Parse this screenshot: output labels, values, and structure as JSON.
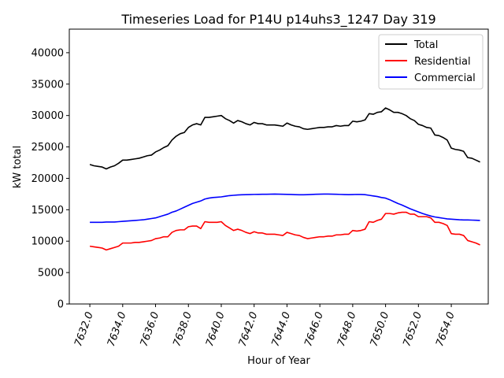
{
  "chart_data": {
    "type": "line",
    "title": "Timeseries Load for P14U p14uhs3_1247  Day 319",
    "xlabel": "Hour of Year",
    "ylabel": "kW total",
    "xlim": [
      7630.75,
      7656.25
    ],
    "ylim": [
      0,
      43750
    ],
    "xticks": [
      7632,
      7634,
      7636,
      7638,
      7640,
      7642,
      7644,
      7646,
      7648,
      7650,
      7652,
      7654
    ],
    "xtick_labels": [
      "7632.0",
      "7634.0",
      "7636.0",
      "7638.0",
      "7640.0",
      "7642.0",
      "7644.0",
      "7646.0",
      "7648.0",
      "7650.0",
      "7652.0",
      "7654.0"
    ],
    "yticks": [
      0,
      5000,
      10000,
      15000,
      20000,
      25000,
      30000,
      35000,
      40000
    ],
    "ytick_labels": [
      "0",
      "5000",
      "10000",
      "15000",
      "20000",
      "25000",
      "30000",
      "35000",
      "40000"
    ],
    "grid": false,
    "legend_position": "top-right",
    "x": [
      7632.0,
      7632.25,
      7632.5,
      7632.75,
      7633.0,
      7633.25,
      7633.5,
      7633.75,
      7634.0,
      7634.25,
      7634.5,
      7634.75,
      7635.0,
      7635.25,
      7635.5,
      7635.75,
      7636.0,
      7636.25,
      7636.5,
      7636.75,
      7637.0,
      7637.25,
      7637.5,
      7637.75,
      7638.0,
      7638.25,
      7638.5,
      7638.75,
      7639.0,
      7639.25,
      7639.5,
      7639.75,
      7640.0,
      7640.25,
      7640.5,
      7640.75,
      7641.0,
      7641.25,
      7641.5,
      7641.75,
      7642.0,
      7642.25,
      7642.5,
      7642.75,
      7643.0,
      7643.25,
      7643.5,
      7643.75,
      7644.0,
      7644.25,
      7644.5,
      7644.75,
      7645.0,
      7645.25,
      7645.5,
      7645.75,
      7646.0,
      7646.25,
      7646.5,
      7646.75,
      7647.0,
      7647.25,
      7647.5,
      7647.75,
      7648.0,
      7648.25,
      7648.5,
      7648.75,
      7649.0,
      7649.25,
      7649.5,
      7649.75,
      7650.0,
      7650.25,
      7650.5,
      7650.75,
      7651.0,
      7651.25,
      7651.5,
      7651.75,
      7652.0,
      7652.25,
      7652.5,
      7652.75,
      7653.0,
      7653.25,
      7653.5,
      7653.75,
      7654.0,
      7654.25,
      7654.5,
      7654.75,
      7655.0,
      7655.25,
      7655.5,
      7655.75
    ],
    "series": [
      {
        "name": "Total",
        "color": "#000000",
        "values": [
          22200,
          22000,
          21900,
          21800,
          21500,
          21800,
          22000,
          22400,
          22900,
          22900,
          23000,
          23100,
          23200,
          23400,
          23600,
          23700,
          24200,
          24500,
          24900,
          25200,
          26100,
          26700,
          27100,
          27300,
          28100,
          28500,
          28700,
          28500,
          29700,
          29700,
          29800,
          29900,
          30000,
          29500,
          29200,
          28800,
          29200,
          29000,
          28700,
          28500,
          28900,
          28700,
          28700,
          28500,
          28500,
          28500,
          28400,
          28300,
          28800,
          28500,
          28300,
          28200,
          27900,
          27800,
          27900,
          28000,
          28100,
          28100,
          28200,
          28200,
          28400,
          28300,
          28400,
          28400,
          29100,
          29000,
          29100,
          29300,
          30300,
          30200,
          30500,
          30600,
          31200,
          30900,
          30500,
          30500,
          30300,
          30000,
          29500,
          29200,
          28600,
          28400,
          28100,
          28000,
          26900,
          26800,
          26500,
          26100,
          24800,
          24600,
          24500,
          24300,
          23300,
          23200,
          22900,
          22600
        ]
      },
      {
        "name": "Residential",
        "color": "#ff0000",
        "values": [
          9200,
          9100,
          9000,
          8900,
          8600,
          8800,
          9000,
          9200,
          9700,
          9700,
          9700,
          9800,
          9800,
          9900,
          10000,
          10100,
          10400,
          10500,
          10700,
          10700,
          11400,
          11700,
          11800,
          11800,
          12300,
          12400,
          12400,
          12000,
          13100,
          13000,
          13000,
          13000,
          13100,
          12500,
          12100,
          11700,
          11900,
          11700,
          11400,
          11200,
          11500,
          11300,
          11300,
          11100,
          11100,
          11100,
          11000,
          10900,
          11400,
          11200,
          11000,
          10900,
          10600,
          10400,
          10500,
          10600,
          10700,
          10700,
          10800,
          10800,
          11000,
          11000,
          11100,
          11100,
          11700,
          11600,
          11700,
          11900,
          13100,
          13000,
          13300,
          13500,
          14400,
          14400,
          14300,
          14500,
          14600,
          14600,
          14300,
          14300,
          13900,
          13900,
          13900,
          13700,
          13000,
          13000,
          12800,
          12500,
          11200,
          11100,
          11100,
          10900,
          10100,
          9900,
          9700,
          9400
        ]
      },
      {
        "name": "Commercial",
        "color": "#0000ff",
        "values": [
          13000,
          13000,
          13000,
          13000,
          13050,
          13050,
          13050,
          13100,
          13150,
          13200,
          13250,
          13300,
          13350,
          13400,
          13500,
          13600,
          13700,
          13900,
          14100,
          14300,
          14600,
          14800,
          15100,
          15400,
          15700,
          16000,
          16200,
          16400,
          16700,
          16850,
          16950,
          17000,
          17050,
          17150,
          17250,
          17300,
          17350,
          17380,
          17400,
          17420,
          17440,
          17450,
          17460,
          17470,
          17480,
          17490,
          17480,
          17470,
          17450,
          17430,
          17400,
          17380,
          17380,
          17400,
          17430,
          17460,
          17480,
          17490,
          17490,
          17480,
          17460,
          17440,
          17420,
          17400,
          17420,
          17440,
          17430,
          17400,
          17300,
          17200,
          17100,
          16950,
          16850,
          16600,
          16300,
          16000,
          15750,
          15450,
          15150,
          14900,
          14650,
          14400,
          14200,
          14000,
          13850,
          13750,
          13650,
          13550,
          13500,
          13450,
          13400,
          13380,
          13370,
          13350,
          13330,
          13300
        ]
      }
    ]
  }
}
